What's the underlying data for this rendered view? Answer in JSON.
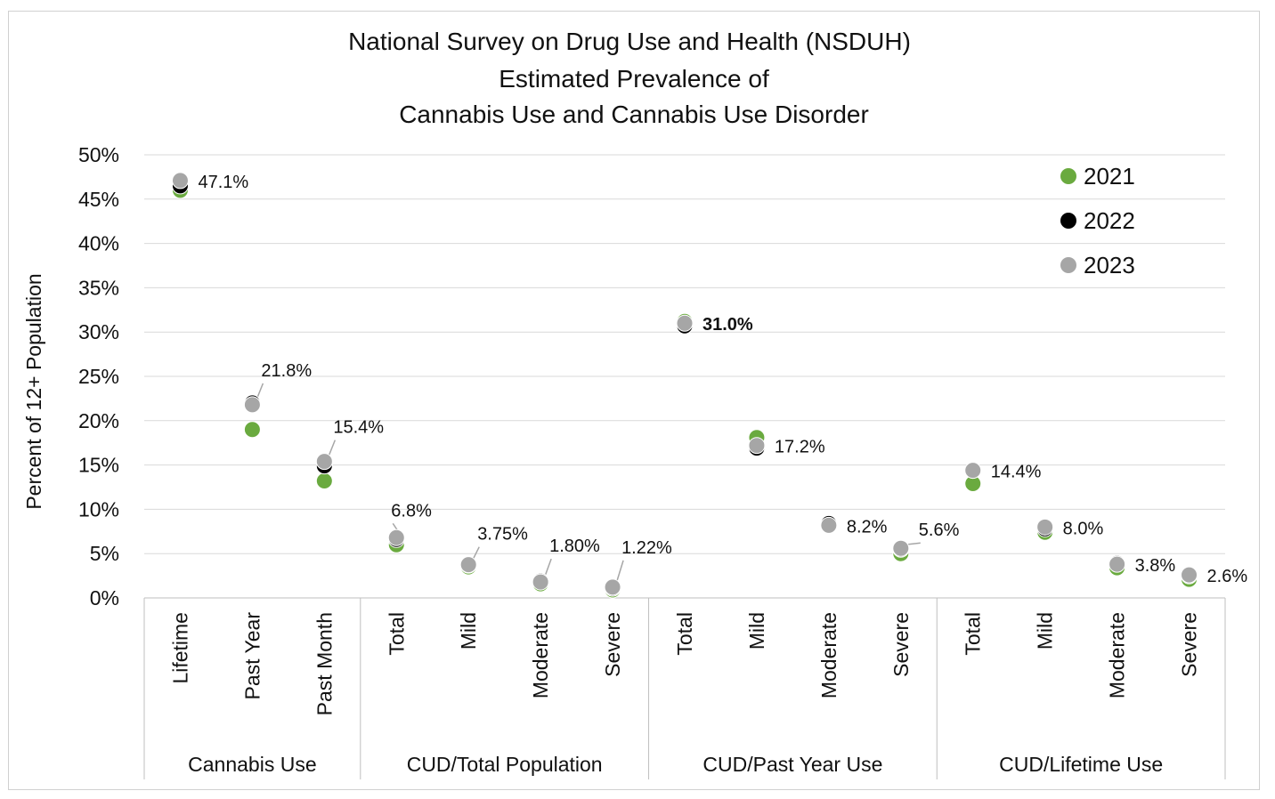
{
  "chart_data": {
    "type": "scatter",
    "title_lines": [
      "National Survey on Drug Use and Health (NSDUH)",
      "Estimated Prevalence of",
      "Cannabis Use and Cannabis Use Disorder"
    ],
    "ylabel": "Percent of 12+ Population",
    "ylim": [
      0,
      50
    ],
    "y_ticks": [
      "0%",
      "5%",
      "10%",
      "15%",
      "20%",
      "25%",
      "30%",
      "35%",
      "40%",
      "45%",
      "50%"
    ],
    "grid": true,
    "legend_position": "top-right",
    "groups": [
      {
        "label": "Cannabis Use",
        "categories": [
          "Lifetime",
          "Past Year",
          "Past Month"
        ]
      },
      {
        "label": "CUD/Total Population",
        "categories": [
          "Total",
          "Mild",
          "Moderate",
          "Severe"
        ]
      },
      {
        "label": "CUD/Past Year Use",
        "categories": [
          "Total",
          "Mild",
          "Moderate",
          "Severe"
        ]
      },
      {
        "label": "CUD/Lifetime Use",
        "categories": [
          "Total",
          "Mild",
          "Moderate",
          "Severe"
        ]
      }
    ],
    "series": [
      {
        "name": "2021",
        "color": "#6aaa3f",
        "values": [
          46.0,
          19.0,
          13.2,
          6.0,
          3.5,
          1.6,
          0.9,
          31.2,
          18.1,
          8.2,
          5.0,
          12.9,
          7.4,
          3.4,
          2.1
        ]
      },
      {
        "name": "2022",
        "color": "#000000",
        "values": [
          46.5,
          22.0,
          14.9,
          6.6,
          3.7,
          1.9,
          1.1,
          30.7,
          16.9,
          8.4,
          5.5,
          14.4,
          7.8,
          3.9,
          2.5
        ]
      },
      {
        "name": "2023",
        "color": "#a6a6a6",
        "values": [
          47.1,
          21.8,
          15.4,
          6.8,
          3.75,
          1.8,
          1.22,
          31.0,
          17.2,
          8.2,
          5.6,
          14.4,
          8.0,
          3.8,
          2.6
        ]
      }
    ],
    "annotations": [
      "47.1%",
      "21.8%",
      "15.4%",
      "6.8%",
      "3.75%",
      "1.80%",
      "1.22%",
      "31.0%",
      "17.2%",
      "8.2%",
      "5.6%",
      "14.4%",
      "8.0%",
      "3.8%",
      "2.6%"
    ],
    "highlight_annotation_color": "#d0312d"
  }
}
